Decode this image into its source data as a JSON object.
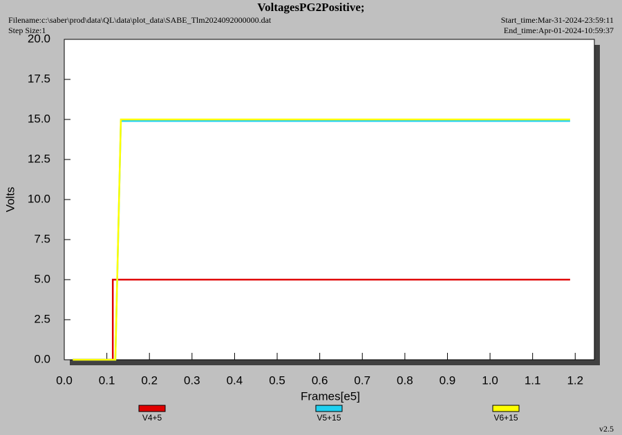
{
  "chart_data": {
    "type": "line",
    "title": "VoltagesPG2Positive;",
    "filename": "Filename:c:\\saber\\prod\\data\\QL\\data\\plot_data\\SABE_Tlm2024092000000.dat",
    "step_size": "Step Size:1",
    "start_time": "Start_time:Mar-31-2024-23:59:11",
    "end_time": "End_time:Apr-01-2024-10:59:37",
    "version": "v2.5",
    "x_label": "Frames[e5]",
    "y_label": "Volts",
    "xlim": [
      0,
      1.245
    ],
    "ylim": [
      0,
      20
    ],
    "xticks": [
      {
        "value": 0,
        "label": "0.0"
      },
      0.1,
      0.2,
      0.3,
      0.4,
      0.5,
      0.6,
      0.7,
      0.8,
      0.9,
      {
        "value": 1,
        "label": "1.0"
      },
      1.1,
      1.2
    ],
    "yticks": [
      {
        "value": 0,
        "label": "0.0"
      },
      2.5,
      {
        "value": 5,
        "label": "5.0"
      },
      7.5,
      {
        "value": 10,
        "label": "10.0"
      },
      12.5,
      {
        "value": 15,
        "label": "15.0"
      },
      17.5,
      {
        "value": 20,
        "label": "20.0"
      }
    ],
    "legend": "bottom",
    "series": [
      {
        "name": "V4+5",
        "color": "#e00000",
        "x": [
          0.02,
          0.114,
          0.114,
          1.188
        ],
        "values": [
          0,
          0,
          5,
          5
        ]
      },
      {
        "name": "V5+15",
        "color": "#20d0f0",
        "x": [
          0.02,
          0.12,
          0.133,
          1.188
        ],
        "values": [
          0,
          0,
          14.9,
          14.9
        ]
      },
      {
        "name": "V6+15",
        "color": "#ffff00",
        "x": [
          0.02,
          0.12,
          0.133,
          1.188
        ],
        "values": [
          0,
          0,
          15,
          15
        ]
      }
    ]
  }
}
